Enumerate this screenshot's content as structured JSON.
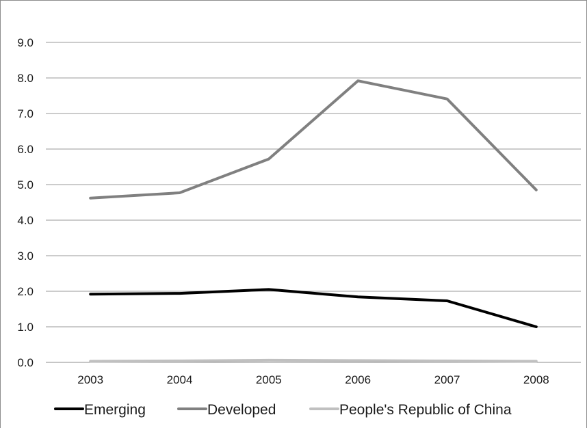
{
  "chart_data": {
    "type": "line",
    "categories": [
      "2003",
      "2004",
      "2005",
      "2006",
      "2007",
      "2008"
    ],
    "series": [
      {
        "name": "Emerging",
        "color": "#000000",
        "values": [
          1.92,
          1.94,
          2.05,
          1.84,
          1.73,
          1.0
        ]
      },
      {
        "name": "Developed",
        "color": "#808080",
        "values": [
          4.62,
          4.77,
          5.72,
          7.92,
          7.41,
          4.85
        ]
      },
      {
        "name": "People's Republic of China",
        "color": "#c0c0c0",
        "values": [
          0.03,
          0.04,
          0.06,
          0.05,
          0.04,
          0.03
        ]
      }
    ],
    "y_ticks": [
      "0.0",
      "1.0",
      "2.0",
      "3.0",
      "4.0",
      "5.0",
      "6.0",
      "7.0",
      "8.0",
      "9.0"
    ],
    "ylim": [
      0,
      9
    ],
    "gridlines": true,
    "legend_position": "bottom"
  }
}
